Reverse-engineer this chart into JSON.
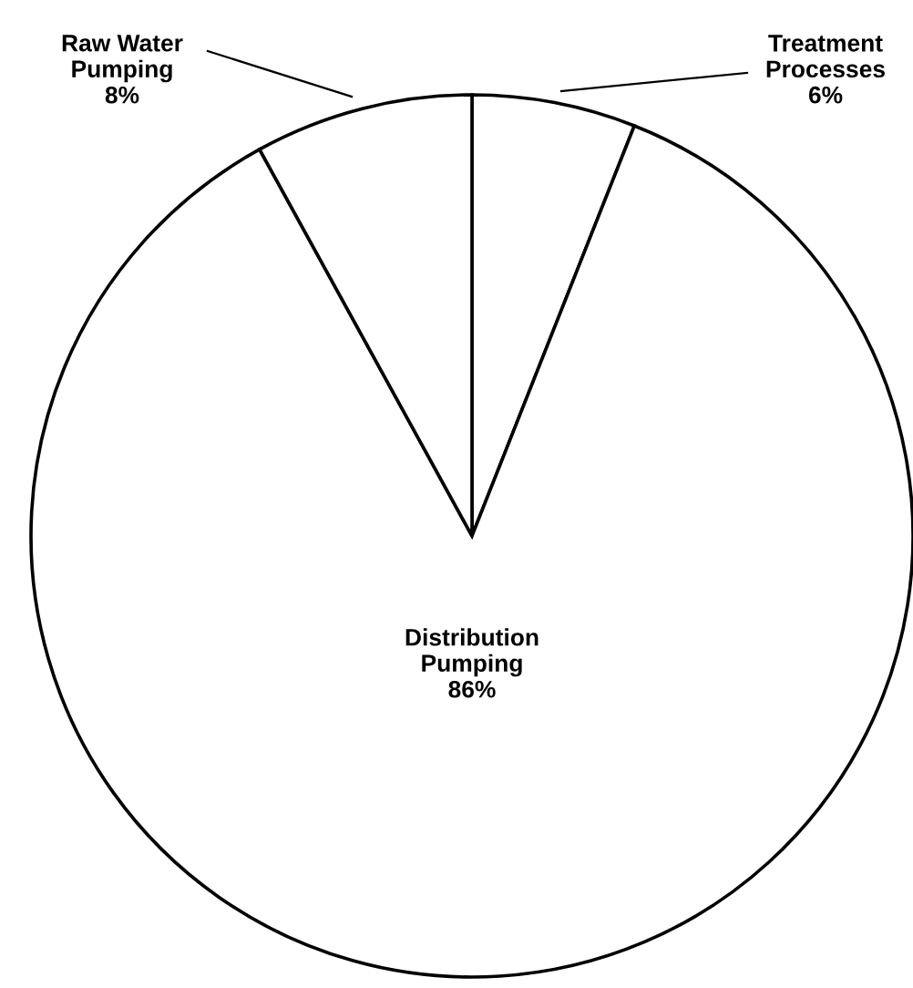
{
  "chart_data": {
    "type": "pie",
    "categories": [
      "Treatment\nProcesses",
      "Distribution\nPumping",
      "Raw Water\nPumping"
    ],
    "values": [
      6,
      86,
      8
    ],
    "value_labels": [
      "6%",
      "86%",
      "8%"
    ],
    "colors": [
      "#ffffff",
      "#ffffff",
      "#ffffff"
    ],
    "legend": false
  }
}
